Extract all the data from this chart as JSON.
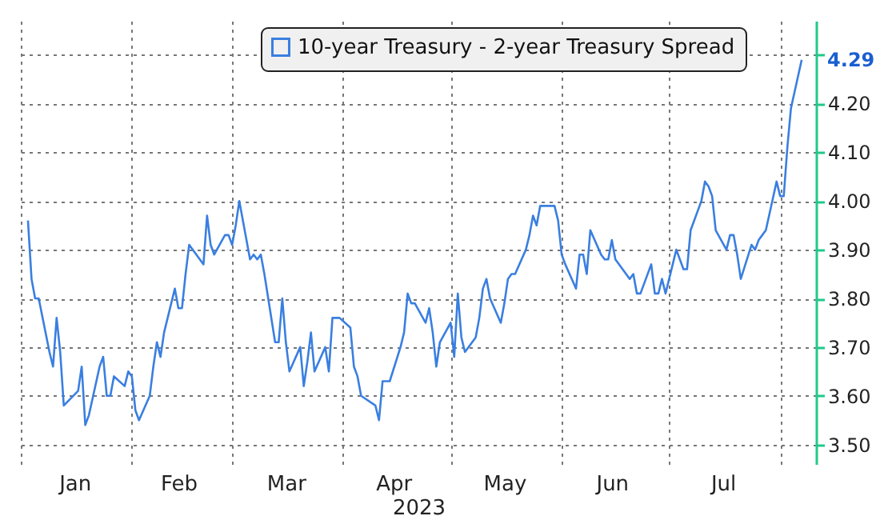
{
  "chart_data": {
    "type": "line",
    "xlabel": "2023",
    "x": [
      "2023-01-03",
      "2023-01-04",
      "2023-01-05",
      "2023-01-06",
      "2023-01-09",
      "2023-01-10",
      "2023-01-11",
      "2023-01-12",
      "2023-01-13",
      "2023-01-17",
      "2023-01-18",
      "2023-01-19",
      "2023-01-20",
      "2023-01-23",
      "2023-01-24",
      "2023-01-25",
      "2023-01-26",
      "2023-01-27",
      "2023-01-30",
      "2023-01-31",
      "2023-02-01",
      "2023-02-02",
      "2023-02-03",
      "2023-02-06",
      "2023-02-07",
      "2023-02-08",
      "2023-02-09",
      "2023-02-10",
      "2023-02-13",
      "2023-02-14",
      "2023-02-15",
      "2023-02-16",
      "2023-02-17",
      "2023-02-21",
      "2023-02-22",
      "2023-02-23",
      "2023-02-24",
      "2023-02-27",
      "2023-02-28",
      "2023-03-01",
      "2023-03-02",
      "2023-03-03",
      "2023-03-06",
      "2023-03-07",
      "2023-03-08",
      "2023-03-09",
      "2023-03-10",
      "2023-03-13",
      "2023-03-14",
      "2023-03-15",
      "2023-03-16",
      "2023-03-17",
      "2023-03-20",
      "2023-03-21",
      "2023-03-22",
      "2023-03-23",
      "2023-03-24",
      "2023-03-27",
      "2023-03-28",
      "2023-03-29",
      "2023-03-30",
      "2023-03-31",
      "2023-04-03",
      "2023-04-04",
      "2023-04-05",
      "2023-04-06",
      "2023-04-10",
      "2023-04-11",
      "2023-04-12",
      "2023-04-13",
      "2023-04-14",
      "2023-04-17",
      "2023-04-18",
      "2023-04-19",
      "2023-04-20",
      "2023-04-21",
      "2023-04-24",
      "2023-04-25",
      "2023-04-26",
      "2023-04-27",
      "2023-04-28",
      "2023-05-01",
      "2023-05-02",
      "2023-05-03",
      "2023-05-04",
      "2023-05-05",
      "2023-05-08",
      "2023-05-09",
      "2023-05-10",
      "2023-05-11",
      "2023-05-12",
      "2023-05-15",
      "2023-05-16",
      "2023-05-17",
      "2023-05-18",
      "2023-05-19",
      "2023-05-22",
      "2023-05-23",
      "2023-05-24",
      "2023-05-25",
      "2023-05-26",
      "2023-05-30",
      "2023-05-31",
      "2023-06-01",
      "2023-06-02",
      "2023-06-05",
      "2023-06-06",
      "2023-06-07",
      "2023-06-08",
      "2023-06-09",
      "2023-06-12",
      "2023-06-13",
      "2023-06-14",
      "2023-06-15",
      "2023-06-16",
      "2023-06-20",
      "2023-06-21",
      "2023-06-22",
      "2023-06-23",
      "2023-06-26",
      "2023-06-27",
      "2023-06-28",
      "2023-06-29",
      "2023-06-30",
      "2023-07-03",
      "2023-07-05",
      "2023-07-06",
      "2023-07-07",
      "2023-07-10",
      "2023-07-11",
      "2023-07-12",
      "2023-07-13",
      "2023-07-14",
      "2023-07-17",
      "2023-07-18",
      "2023-07-19",
      "2023-07-20",
      "2023-07-21",
      "2023-07-24",
      "2023-07-25",
      "2023-07-26",
      "2023-07-27",
      "2023-07-28",
      "2023-07-31",
      "2023-08-01",
      "2023-08-02",
      "2023-08-03",
      "2023-08-04",
      "2023-08-07"
    ],
    "series": [
      {
        "name": "10-year Treasury - 2-year Treasury Spread",
        "color": "#3a7fe0",
        "values": [
          3.96,
          3.84,
          3.8,
          3.8,
          3.69,
          3.66,
          3.76,
          3.69,
          3.58,
          3.61,
          3.66,
          3.54,
          3.56,
          3.66,
          3.68,
          3.6,
          3.6,
          3.64,
          3.62,
          3.65,
          3.64,
          3.57,
          3.55,
          3.6,
          3.66,
          3.71,
          3.68,
          3.73,
          3.82,
          3.78,
          3.78,
          3.85,
          3.91,
          3.87,
          3.97,
          3.91,
          3.89,
          3.93,
          3.93,
          3.91,
          3.95,
          4.0,
          3.88,
          3.89,
          3.88,
          3.89,
          3.85,
          3.71,
          3.71,
          3.8,
          3.71,
          3.65,
          3.7,
          3.62,
          3.67,
          3.73,
          3.65,
          3.7,
          3.65,
          3.76,
          3.76,
          3.76,
          3.74,
          3.66,
          3.64,
          3.6,
          3.58,
          3.55,
          3.63,
          3.63,
          3.63,
          3.7,
          3.73,
          3.81,
          3.79,
          3.79,
          3.75,
          3.78,
          3.73,
          3.66,
          3.71,
          3.75,
          3.68,
          3.81,
          3.72,
          3.69,
          3.72,
          3.76,
          3.82,
          3.84,
          3.8,
          3.75,
          3.79,
          3.84,
          3.85,
          3.85,
          3.9,
          3.93,
          3.97,
          3.95,
          3.99,
          3.99,
          3.96,
          3.89,
          3.87,
          3.82,
          3.89,
          3.89,
          3.85,
          3.94,
          3.89,
          3.88,
          3.88,
          3.92,
          3.88,
          3.84,
          3.85,
          3.81,
          3.81,
          3.87,
          3.81,
          3.81,
          3.84,
          3.81,
          3.9,
          3.86,
          3.86,
          3.94,
          4.0,
          4.04,
          4.03,
          4.01,
          3.94,
          3.9,
          3.93,
          3.93,
          3.89,
          3.84,
          3.91,
          3.9,
          3.92,
          3.93,
          3.94,
          4.04,
          4.01,
          4.01,
          4.11,
          4.19,
          4.29
        ]
      }
    ],
    "xlim": [
      "2023-01-01",
      "2023-08-11"
    ],
    "xticks": [
      {
        "value": "2023-01-01",
        "label": null
      },
      {
        "value": "2023-01-16",
        "label": "Jan"
      },
      {
        "value": "2023-02-01",
        "label": null
      },
      {
        "value": "2023-02-14",
        "label": "Feb"
      },
      {
        "value": "2023-03-01",
        "label": null
      },
      {
        "value": "2023-03-16",
        "label": "Mar"
      },
      {
        "value": "2023-04-01",
        "label": null
      },
      {
        "value": "2023-04-15",
        "label": "Apr"
      },
      {
        "value": "2023-05-01",
        "label": null
      },
      {
        "value": "2023-05-16",
        "label": "May"
      },
      {
        "value": "2023-06-01",
        "label": null
      },
      {
        "value": "2023-06-15",
        "label": "Jun"
      },
      {
        "value": "2023-07-01",
        "label": null
      },
      {
        "value": "2023-07-16",
        "label": "Jul"
      },
      {
        "value": "2023-08-01",
        "label": null
      }
    ],
    "ylim": [
      3.46,
      4.37
    ],
    "yticks": [
      {
        "value": 3.5,
        "label": "3.50"
      },
      {
        "value": 3.6,
        "label": "3.60"
      },
      {
        "value": 3.7,
        "label": "3.70"
      },
      {
        "value": 3.8,
        "label": "3.80"
      },
      {
        "value": 3.9,
        "label": "3.90"
      },
      {
        "value": 4.0,
        "label": "4.00"
      },
      {
        "value": 4.1,
        "label": "4.10"
      },
      {
        "value": 4.2,
        "label": "4.20"
      },
      {
        "value": 4.3,
        "label": null
      }
    ],
    "annotations": [
      {
        "text": "4.29",
        "x": "2023-08-07",
        "y": 4.29
      }
    ],
    "grid": true,
    "legend": "top",
    "line_style": "solid",
    "marker": "none"
  }
}
